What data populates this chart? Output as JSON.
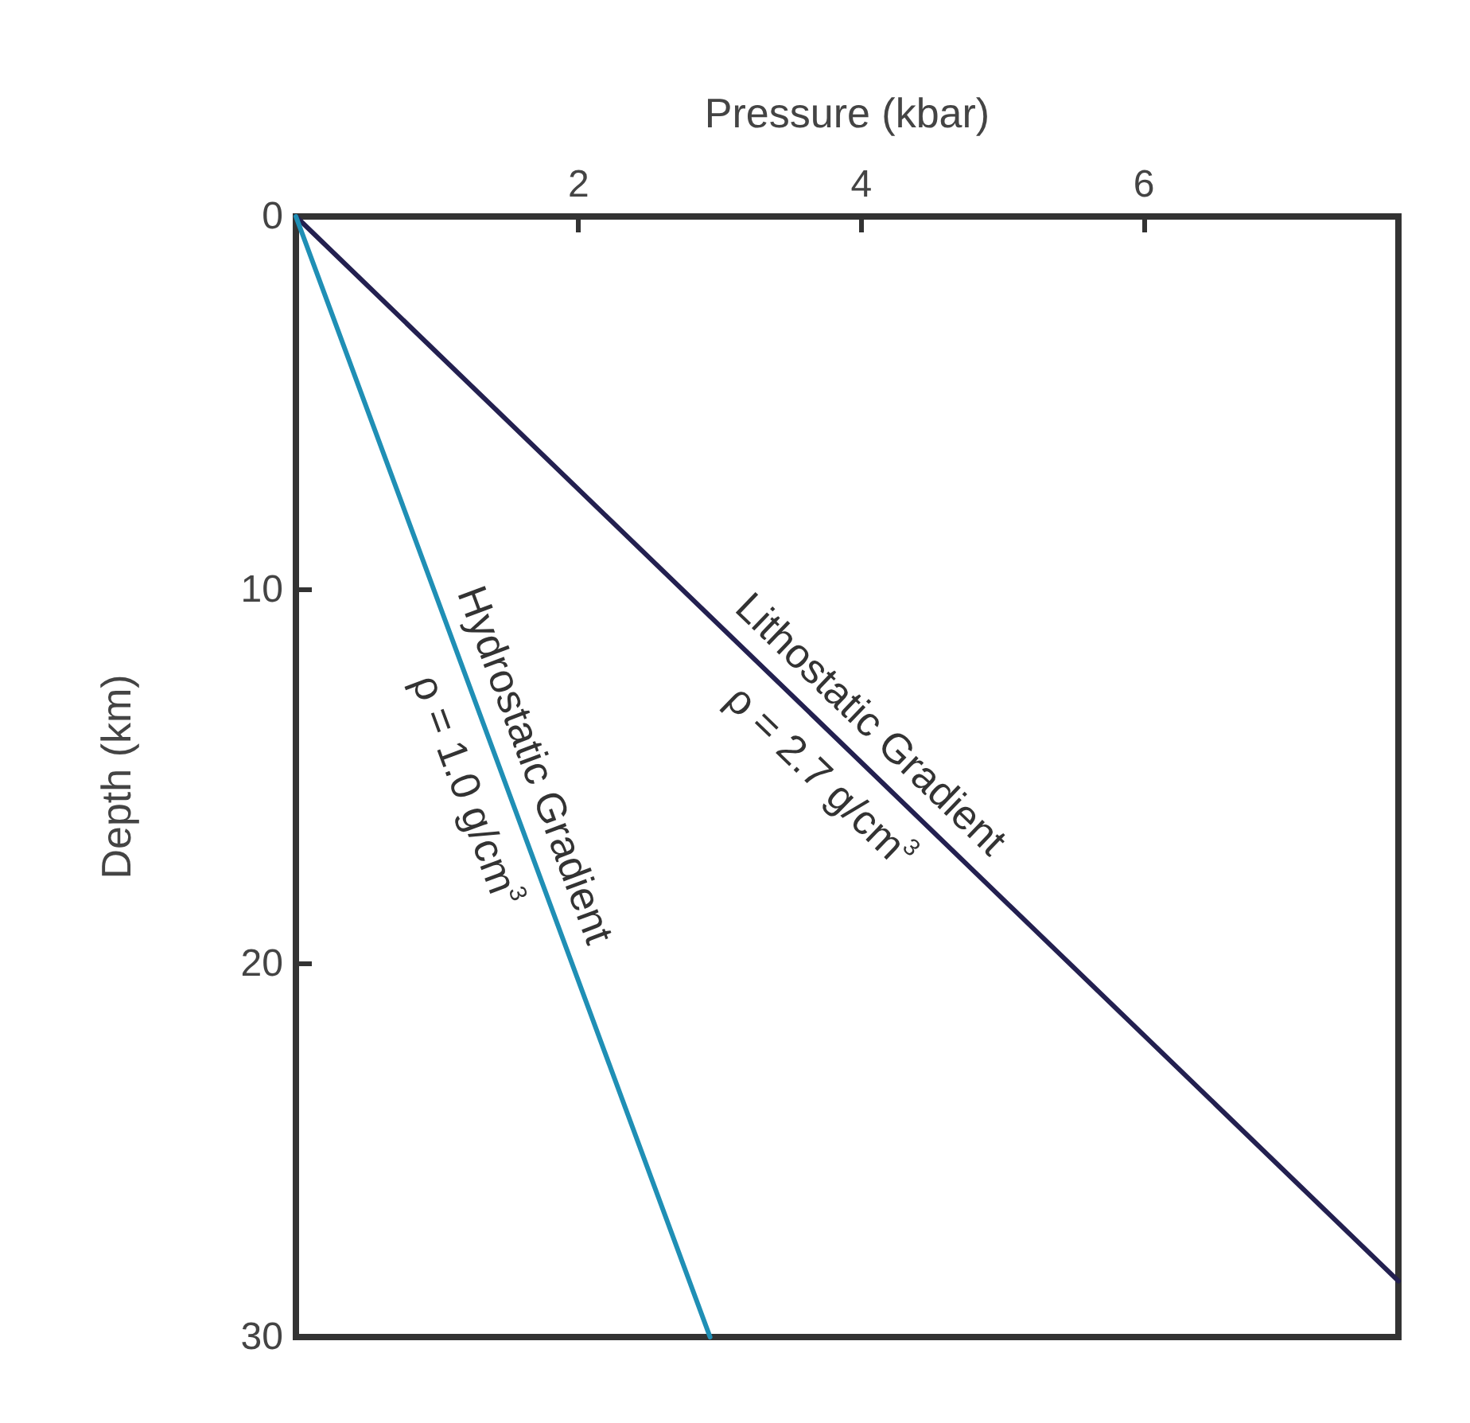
{
  "chart_data": {
    "type": "line",
    "xlabel": "Pressure (kbar)",
    "ylabel": "Depth (km)",
    "series": [
      {
        "name": "Lithostatic Gradient",
        "color": "#232050",
        "x": [
          0,
          7.8
        ],
        "values": [
          0,
          28.5
        ]
      },
      {
        "name": "Hydrostatic Gradient",
        "color": "#1f8fb5",
        "x": [
          0,
          2.93
        ],
        "values": [
          0,
          30
        ]
      }
    ],
    "xlim": [
      0,
      7.8
    ],
    "xticks": [
      2,
      4,
      6
    ],
    "ylim": [
      30,
      0
    ],
    "yticks": [
      0,
      10,
      20,
      30
    ],
    "grid": false,
    "legend": false,
    "marker": "none",
    "line_style": "solid",
    "annotations": [
      "ρ = 2.7 g/cm$^{3}$",
      "ρ = 1.0 g/cm$^{3}$"
    ]
  }
}
